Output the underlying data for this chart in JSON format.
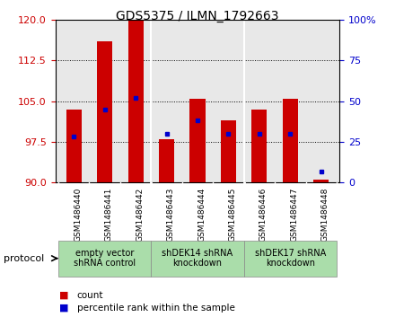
{
  "title": "GDS5375 / ILMN_1792663",
  "samples": [
    "GSM1486440",
    "GSM1486441",
    "GSM1486442",
    "GSM1486443",
    "GSM1486444",
    "GSM1486445",
    "GSM1486446",
    "GSM1486447",
    "GSM1486448"
  ],
  "counts": [
    103.5,
    116.0,
    120.0,
    98.0,
    105.5,
    101.5,
    103.5,
    105.5,
    90.5
  ],
  "percentiles": [
    28,
    45,
    52,
    30,
    38,
    30,
    30,
    30,
    7
  ],
  "ylim_left": [
    90,
    120
  ],
  "ylim_right": [
    0,
    100
  ],
  "yticks_left": [
    90,
    97.5,
    105,
    112.5,
    120
  ],
  "yticks_right": [
    0,
    25,
    50,
    75,
    100
  ],
  "bar_color": "#cc0000",
  "dot_color": "#0000cc",
  "bar_width": 0.5,
  "groups": [
    {
      "label": "empty vector\nshRNA control",
      "start": 0,
      "end": 3,
      "color": "#aaddaa"
    },
    {
      "label": "shDEK14 shRNA\nknockdown",
      "start": 3,
      "end": 6,
      "color": "#aaddaa"
    },
    {
      "label": "shDEK17 shRNA\nknockdown",
      "start": 6,
      "end": 9,
      "color": "#aaddaa"
    }
  ],
  "protocol_label": "protocol",
  "legend_count_label": "count",
  "legend_percentile_label": "percentile rank within the sample",
  "background_color": "#ffffff",
  "plot_bg_color": "#e8e8e8",
  "left_axis_color": "#cc0000",
  "right_axis_color": "#0000cc",
  "base_value": 90,
  "sample_box_color": "#d0d0d0"
}
